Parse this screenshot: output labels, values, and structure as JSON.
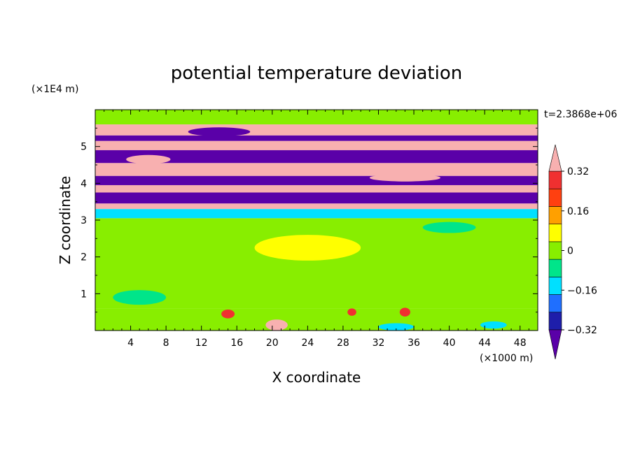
{
  "chart_data": {
    "type": "heatmap",
    "title": "potential temperature deviation",
    "xlabel": "X coordinate",
    "ylabel": "Z coordinate",
    "x_unit_label": "(×1000 m)",
    "y_unit_label": "(×1E4 m)",
    "time_label": "t=2.3868e+06",
    "xlim": [
      0,
      50
    ],
    "ylim": [
      0,
      6
    ],
    "x_ticks": [
      4,
      8,
      12,
      16,
      20,
      24,
      28,
      32,
      36,
      40,
      44,
      48
    ],
    "y_ticks": [
      1,
      2,
      3,
      4,
      5
    ],
    "colorbar": {
      "levels": [
        -0.4,
        -0.32,
        -0.24,
        -0.16,
        -0.08,
        0,
        0.08,
        0.16,
        0.24,
        0.32,
        0.4
      ],
      "tick_labels": [
        "0.32",
        "0.16",
        "0",
        "−0.16",
        "−0.32"
      ],
      "tick_values": [
        0.32,
        0.16,
        0,
        -0.16,
        -0.32
      ],
      "colors": [
        "#5a00a8",
        "#1e1eaa",
        "#1f6fff",
        "#00e0ff",
        "#00e58a",
        "#88ee00",
        "#ffff00",
        "#ffa000",
        "#ff4010",
        "#f03030",
        "#f8b0b0"
      ],
      "extend": "both"
    },
    "bands": [
      {
        "z": [
          5.6,
          6.0
        ],
        "value": 0.05
      },
      {
        "z": [
          5.3,
          5.6
        ],
        "value": 0.4
      },
      {
        "z": [
          5.15,
          5.3
        ],
        "value": -0.4
      },
      {
        "z": [
          4.9,
          5.15
        ],
        "value": 0.4
      },
      {
        "z": [
          4.55,
          4.9
        ],
        "value": -0.4
      },
      {
        "z": [
          4.2,
          4.55
        ],
        "value": 0.4
      },
      {
        "z": [
          3.95,
          4.2
        ],
        "value": -0.4
      },
      {
        "z": [
          3.75,
          3.95
        ],
        "value": 0.4
      },
      {
        "z": [
          3.45,
          3.75
        ],
        "value": -0.4
      },
      {
        "z": [
          3.3,
          3.45
        ],
        "value": 0.4
      },
      {
        "z": [
          3.05,
          3.3
        ],
        "value": -0.1
      },
      {
        "z": [
          0.6,
          3.05
        ],
        "value": 0.05
      },
      {
        "z": [
          0.0,
          0.6
        ],
        "value": 0.05
      }
    ],
    "blobs": [
      {
        "x": 14,
        "z": 5.4,
        "w": 7,
        "h": 0.12,
        "value": -0.4
      },
      {
        "x": 6,
        "z": 4.65,
        "w": 5,
        "h": 0.12,
        "value": 0.4
      },
      {
        "x": 35,
        "z": 4.15,
        "w": 8,
        "h": 0.1,
        "value": 0.4
      },
      {
        "x": 20.5,
        "z": 0.15,
        "w": 2.5,
        "h": 0.15,
        "value": 0.4
      },
      {
        "x": 15,
        "z": 0.45,
        "w": 1.5,
        "h": 0.12,
        "value": 0.32
      },
      {
        "x": 35,
        "z": 0.5,
        "w": 1.2,
        "h": 0.12,
        "value": 0.32
      },
      {
        "x": 29,
        "z": 0.5,
        "w": 1.0,
        "h": 0.1,
        "value": 0.32
      },
      {
        "x": 34,
        "z": 0.1,
        "w": 4,
        "h": 0.1,
        "value": -0.1
      },
      {
        "x": 45,
        "z": 0.15,
        "w": 3,
        "h": 0.1,
        "value": -0.1
      },
      {
        "x": 24,
        "z": 2.25,
        "w": 12,
        "h": 0.35,
        "value": 0.08
      },
      {
        "x": 5,
        "z": 0.9,
        "w": 6,
        "h": 0.2,
        "value": -0.05
      },
      {
        "x": 40,
        "z": 2.8,
        "w": 6,
        "h": 0.15,
        "value": -0.05
      }
    ]
  }
}
